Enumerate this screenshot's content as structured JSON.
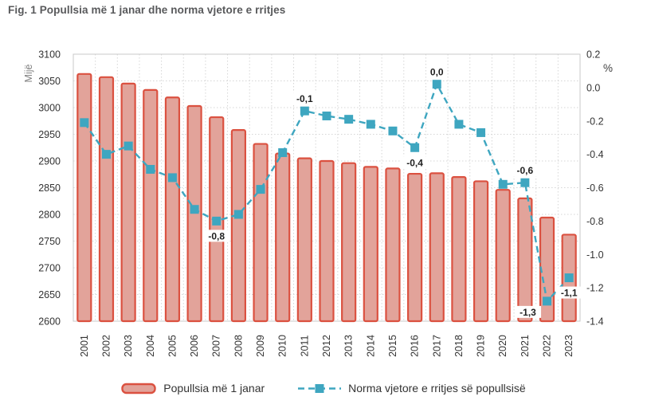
{
  "figure_title": "Fig. 1 Popullsia më 1 janar dhe norma vjetore e rritjes",
  "chart_data": {
    "type": "combo",
    "title": "Fig. 1 Popullsia më 1 janar dhe norma vjetore e rritjes",
    "categories": [
      "2001",
      "2002",
      "2003",
      "2004",
      "2005",
      "2006",
      "2007",
      "2008",
      "2009",
      "2010",
      "2011",
      "2012",
      "2013",
      "2014",
      "2015",
      "2016",
      "2017",
      "2018",
      "2019",
      "2020",
      "2021",
      "2022",
      "2023"
    ],
    "series": [
      {
        "name": "Popullsia më 1 janar",
        "type": "bar",
        "axis": "left",
        "values": [
          3063,
          3057,
          3045,
          3033,
          3019,
          3003,
          2982,
          2958,
          2932,
          2914,
          2905,
          2900,
          2896,
          2889,
          2886,
          2876,
          2877,
          2870,
          2862,
          2846,
          2830,
          2794,
          2762
        ]
      },
      {
        "name": "Norma vjetore e rritjes së popullsisë",
        "type": "line",
        "axis": "right",
        "values": [
          -0.21,
          -0.4,
          -0.35,
          -0.49,
          -0.54,
          -0.73,
          -0.8,
          -0.76,
          -0.61,
          -0.39,
          -0.14,
          -0.17,
          -0.19,
          -0.22,
          -0.26,
          -0.36,
          0.02,
          -0.22,
          -0.27,
          -0.58,
          -0.57,
          -1.28,
          -1.14
        ]
      }
    ],
    "left_axis": {
      "title": "Mijë",
      "min": 2600,
      "max": 3100,
      "step": 50,
      "ticks": [
        "3100",
        "3050",
        "3000",
        "2950",
        "2900",
        "2850",
        "2800",
        "2750",
        "2700",
        "2650",
        "2600"
      ]
    },
    "right_axis": {
      "title": "%",
      "min": -1.4,
      "max": 0.2,
      "step": 0.2,
      "ticks": [
        "0.2",
        "0.0",
        "-0.2",
        "-0.4",
        "-0.6",
        "-0.8",
        "-1.0",
        "-1.2",
        "-1.4"
      ]
    },
    "point_labels": [
      {
        "category": "2007",
        "text": "-0,8",
        "position": "below"
      },
      {
        "category": "2011",
        "text": "-0,1",
        "position": "above"
      },
      {
        "category": "2016",
        "text": "-0,4",
        "position": "below"
      },
      {
        "category": "2017",
        "text": "0,0",
        "position": "above"
      },
      {
        "category": "2021",
        "text": "-0,6",
        "position": "above"
      },
      {
        "category": "2022",
        "text": "-1,3",
        "position": "below-left"
      },
      {
        "category": "2023",
        "text": "-1,1",
        "position": "below"
      }
    ],
    "grid": true,
    "legend_position": "bottom",
    "colors": {
      "bar_fill": "#e2a39a",
      "bar_border": "#db5140",
      "line": "#3ea6c0",
      "title_text": "#58595b",
      "tick_text": "#333333",
      "axis_title_text": "#7f7f7f",
      "gridline": "#d6d6d6",
      "plot_border": "#c9c9c9",
      "point_label_text": "#1f1f1f"
    }
  }
}
